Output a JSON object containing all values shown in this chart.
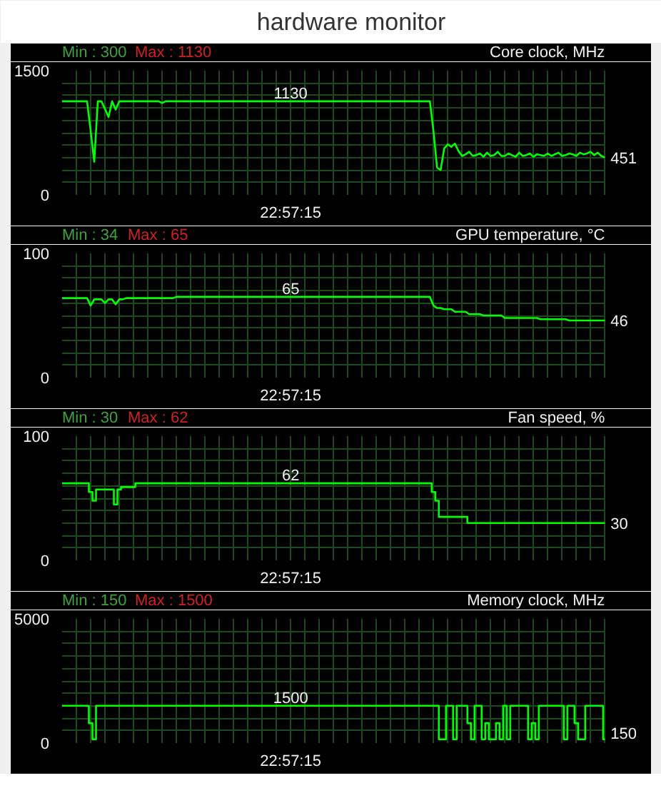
{
  "chart_data": [
    {
      "type": "line",
      "title": "hardware monitor",
      "ylabel": "Core clock, MHz",
      "annotations": [
        "Min : 300",
        "Max : 1130"
      ],
      "color": "#00ff00",
      "grid": true,
      "ylim": [
        0,
        1500
      ],
      "yticks": [
        0,
        {
          "value": 150,
          "label": null
        },
        {
          "value": 300,
          "label": null
        },
        {
          "value": 450,
          "label": null
        },
        {
          "value": 600,
          "label": null
        },
        {
          "value": 750,
          "label": null
        },
        {
          "value": 900,
          "label": null
        },
        {
          "value": 1050,
          "label": null
        },
        {
          "value": 1200,
          "label": null
        },
        {
          "value": 1350,
          "label": null
        },
        1500
      ],
      "categories": [
        null,
        null,
        null,
        null,
        null,
        null,
        null,
        null,
        null,
        null,
        null,
        null,
        null,
        null,
        null,
        null,
        null,
        null,
        null,
        null,
        null,
        null,
        null,
        null,
        null,
        null,
        null,
        null,
        null,
        null,
        null,
        null,
        null,
        null,
        null,
        null,
        null,
        null,
        null,
        null,
        null,
        null,
        null,
        null,
        null,
        null,
        null,
        null,
        null,
        null,
        null,
        null,
        null,
        null,
        null,
        null,
        null,
        null,
        null,
        null,
        null,
        null,
        null,
        null,
        "22:57:15",
        null,
        null,
        null,
        null,
        null,
        null,
        null,
        null,
        null,
        null,
        null,
        null,
        null,
        null,
        null,
        null,
        null,
        null,
        null,
        null,
        null,
        null,
        null,
        null,
        null,
        null,
        null,
        null,
        null,
        null,
        null,
        null,
        null,
        null,
        null,
        null,
        null,
        null,
        null,
        null,
        null,
        null,
        null,
        null,
        null,
        null,
        null,
        null,
        null,
        null,
        null,
        null,
        null,
        null,
        null,
        null,
        null,
        null,
        null,
        null,
        null,
        null,
        null,
        null,
        null,
        null,
        null,
        null,
        null,
        null,
        null,
        null,
        null,
        null,
        null,
        null,
        null,
        null,
        null,
        null,
        null,
        null,
        null,
        null,
        null,
        null,
        null,
        null
      ],
      "values": [
        1130,
        1130,
        1130,
        1130,
        1130,
        1130,
        1130,
        1130,
        770,
        400,
        1130,
        1130,
        1040,
        940,
        1130,
        1030,
        1130,
        1130,
        1130,
        1130,
        1130,
        1130,
        1130,
        1130,
        1130,
        1130,
        1130,
        1130,
        1110,
        1130,
        1130,
        1130,
        1130,
        1130,
        1130,
        1130,
        1130,
        1130,
        1130,
        1130,
        1130,
        1130,
        1130,
        1130,
        1130,
        1130,
        1130,
        1130,
        1130,
        1130,
        1130,
        1130,
        1130,
        1130,
        1130,
        1130,
        1130,
        1130,
        1130,
        1130,
        1130,
        1130,
        1130,
        1130,
        1130,
        1130,
        1130,
        1130,
        1130,
        1130,
        1130,
        1130,
        1130,
        1130,
        1130,
        1130,
        1130,
        1130,
        1130,
        1130,
        1130,
        1130,
        1130,
        1130,
        1130,
        1130,
        1130,
        1130,
        1130,
        1130,
        1130,
        1130,
        1130,
        1130,
        1130,
        1130,
        1130,
        1130,
        1130,
        1130,
        1130,
        1130,
        1130,
        1130,
        770,
        330,
        300,
        560,
        610,
        580,
        620,
        530,
        470,
        490,
        520,
        470,
        480,
        500,
        460,
        510,
        470,
        480,
        520,
        470,
        470,
        500,
        480,
        460,
        510,
        470,
        480,
        500,
        460,
        490,
        480,
        470,
        500,
        470,
        490,
        510,
        470,
        480,
        500,
        490,
        470,
        510,
        490,
        500,
        520,
        480,
        510,
        470,
        451
      ],
      "value_labels": [
        null,
        null,
        null,
        null,
        null,
        null,
        null,
        null,
        null,
        null,
        null,
        null,
        null,
        null,
        null,
        null,
        null,
        null,
        null,
        null,
        null,
        null,
        null,
        null,
        null,
        null,
        null,
        null,
        null,
        null,
        null,
        null,
        null,
        null,
        null,
        null,
        null,
        null,
        null,
        null,
        null,
        null,
        null,
        null,
        null,
        null,
        null,
        null,
        null,
        null,
        null,
        null,
        null,
        null,
        null,
        null,
        null,
        null,
        null,
        null,
        null,
        null,
        null,
        null,
        "1130",
        null,
        null,
        null,
        null,
        null,
        null,
        null,
        null,
        null,
        null,
        null,
        null,
        null,
        null,
        null,
        null,
        null,
        null,
        null,
        null,
        null,
        null,
        null,
        null,
        null,
        null,
        null,
        null,
        null,
        null,
        null,
        null,
        null,
        null,
        null,
        null,
        null,
        null,
        null,
        null,
        null,
        null,
        null,
        null,
        null,
        null,
        null,
        null,
        null,
        null,
        null,
        null,
        null,
        null,
        null,
        null,
        null,
        null,
        null,
        null,
        null,
        null,
        null,
        null,
        null,
        null,
        null,
        null,
        null,
        null,
        null,
        null,
        null,
        null,
        null,
        null,
        null,
        null,
        null,
        null,
        null,
        null,
        null,
        null,
        null,
        null,
        null,
        "451"
      ]
    },
    {
      "type": "line",
      "ylabel": "GPU temperature, °C",
      "annotations": [
        "Min : 34",
        "Max : 65"
      ],
      "color": "#00ff00",
      "grid": true,
      "ylim": [
        0,
        100
      ],
      "yticks": [
        0,
        {
          "value": 10,
          "label": null
        },
        {
          "value": 20,
          "label": null
        },
        {
          "value": 30,
          "label": null
        },
        {
          "value": 40,
          "label": null
        },
        {
          "value": 50,
          "label": null
        },
        {
          "value": 60,
          "label": null
        },
        {
          "value": 70,
          "label": null
        },
        {
          "value": 80,
          "label": null
        },
        {
          "value": 90,
          "label": null
        },
        100
      ],
      "categories": [
        null,
        null,
        null,
        null,
        null,
        null,
        null,
        null,
        null,
        null,
        null,
        null,
        null,
        null,
        null,
        null,
        null,
        null,
        null,
        null,
        null,
        null,
        null,
        null,
        null,
        null,
        null,
        null,
        null,
        null,
        null,
        null,
        null,
        null,
        null,
        null,
        null,
        null,
        null,
        null,
        null,
        null,
        null,
        null,
        null,
        null,
        null,
        null,
        null,
        null,
        null,
        null,
        null,
        null,
        null,
        null,
        null,
        null,
        null,
        null,
        null,
        null,
        null,
        null,
        "22:57:15",
        null,
        null,
        null,
        null,
        null,
        null,
        null,
        null,
        null,
        null,
        null,
        null,
        null,
        null,
        null,
        null,
        null,
        null,
        null,
        null,
        null,
        null,
        null,
        null,
        null,
        null,
        null,
        null,
        null,
        null,
        null,
        null,
        null,
        null,
        null,
        null,
        null,
        null,
        null,
        null,
        null,
        null,
        null,
        null,
        null,
        null,
        null,
        null,
        null,
        null,
        null,
        null,
        null,
        null,
        null,
        null,
        null,
        null,
        null,
        null,
        null,
        null,
        null,
        null,
        null,
        null,
        null,
        null,
        null,
        null,
        null,
        null,
        null,
        null,
        null,
        null,
        null,
        null,
        null,
        null,
        null,
        null,
        null,
        null,
        null,
        null,
        null,
        null
      ],
      "values": [
        64,
        64,
        64,
        64,
        64,
        64,
        64,
        64,
        58,
        63,
        63,
        63,
        60,
        63,
        63,
        59,
        63,
        63,
        64,
        64,
        64,
        64,
        64,
        64,
        64,
        64,
        64,
        64,
        64,
        64,
        64,
        64,
        65,
        65,
        65,
        65,
        65,
        65,
        65,
        65,
        65,
        65,
        65,
        65,
        65,
        65,
        65,
        65,
        65,
        65,
        65,
        65,
        65,
        65,
        65,
        65,
        65,
        65,
        65,
        65,
        65,
        65,
        65,
        65,
        65,
        65,
        65,
        65,
        65,
        65,
        65,
        65,
        65,
        65,
        65,
        65,
        65,
        65,
        65,
        65,
        65,
        65,
        65,
        65,
        65,
        65,
        65,
        65,
        65,
        65,
        65,
        65,
        65,
        65,
        65,
        65,
        65,
        65,
        65,
        65,
        65,
        65,
        65,
        65,
        58,
        56,
        56,
        55,
        55,
        55,
        53,
        53,
        53,
        53,
        51,
        51,
        51,
        51,
        50,
        50,
        50,
        50,
        50,
        50,
        48,
        48,
        48,
        48,
        48,
        48,
        48,
        48,
        48,
        48,
        47,
        47,
        47,
        47,
        47,
        47,
        47,
        47,
        46,
        46,
        46,
        46,
        46,
        46,
        46,
        46,
        46,
        46,
        46
      ],
      "value_labels": [
        null,
        null,
        null,
        null,
        null,
        null,
        null,
        null,
        null,
        null,
        null,
        null,
        null,
        null,
        null,
        null,
        null,
        null,
        null,
        null,
        null,
        null,
        null,
        null,
        null,
        null,
        null,
        null,
        null,
        null,
        null,
        null,
        null,
        null,
        null,
        null,
        null,
        null,
        null,
        null,
        null,
        null,
        null,
        null,
        null,
        null,
        null,
        null,
        null,
        null,
        null,
        null,
        null,
        null,
        null,
        null,
        null,
        null,
        null,
        null,
        null,
        null,
        null,
        null,
        "65",
        null,
        null,
        null,
        null,
        null,
        null,
        null,
        null,
        null,
        null,
        null,
        null,
        null,
        null,
        null,
        null,
        null,
        null,
        null,
        null,
        null,
        null,
        null,
        null,
        null,
        null,
        null,
        null,
        null,
        null,
        null,
        null,
        null,
        null,
        null,
        null,
        null,
        null,
        null,
        null,
        null,
        null,
        null,
        null,
        null,
        null,
        null,
        null,
        null,
        null,
        null,
        null,
        null,
        null,
        null,
        null,
        null,
        null,
        null,
        null,
        null,
        null,
        null,
        null,
        null,
        null,
        null,
        null,
        null,
        null,
        null,
        null,
        null,
        null,
        null,
        null,
        null,
        null,
        null,
        null,
        null,
        null,
        null,
        null,
        null,
        null,
        null,
        "46"
      ]
    },
    {
      "type": "step",
      "ylabel": "Fan speed, %",
      "annotations": [
        "Min : 30",
        "Max : 62"
      ],
      "color": "#00ff00",
      "grid": true,
      "ylim": [
        0,
        100
      ],
      "yticks": [
        0,
        {
          "value": 10,
          "label": null
        },
        {
          "value": 20,
          "label": null
        },
        {
          "value": 30,
          "label": null
        },
        {
          "value": 40,
          "label": null
        },
        {
          "value": 50,
          "label": null
        },
        {
          "value": 60,
          "label": null
        },
        {
          "value": 70,
          "label": null
        },
        {
          "value": 80,
          "label": null
        },
        {
          "value": 90,
          "label": null
        },
        100
      ],
      "categories": [
        null,
        null,
        null,
        null,
        null,
        null,
        null,
        null,
        null,
        null,
        null,
        null,
        null,
        null,
        null,
        null,
        null,
        null,
        null,
        null,
        null,
        null,
        null,
        null,
        null,
        null,
        null,
        null,
        null,
        null,
        null,
        null,
        null,
        null,
        null,
        null,
        null,
        null,
        null,
        null,
        null,
        null,
        null,
        null,
        null,
        null,
        null,
        null,
        null,
        null,
        null,
        null,
        null,
        null,
        null,
        null,
        null,
        null,
        null,
        null,
        null,
        null,
        null,
        null,
        "22:57:15",
        null,
        null,
        null,
        null,
        null,
        null,
        null,
        null,
        null,
        null,
        null,
        null,
        null,
        null,
        null,
        null,
        null,
        null,
        null,
        null,
        null,
        null,
        null,
        null,
        null,
        null,
        null,
        null,
        null,
        null,
        null,
        null,
        null,
        null,
        null,
        null,
        null,
        null,
        null,
        null,
        null,
        null,
        null,
        null,
        null,
        null,
        null,
        null,
        null,
        null,
        null,
        null,
        null,
        null,
        null,
        null,
        null,
        null,
        null,
        null,
        null,
        null,
        null,
        null,
        null,
        null,
        null,
        null,
        null,
        null,
        null,
        null,
        null,
        null,
        null,
        null,
        null,
        null,
        null,
        null,
        null,
        null,
        null,
        null,
        null,
        null,
        null,
        null
      ],
      "values": [
        62,
        62,
        62,
        62,
        62,
        62,
        62,
        62,
        55,
        48,
        57,
        57,
        57,
        57,
        57,
        45,
        57,
        59,
        59,
        59,
        59,
        62,
        62,
        62,
        62,
        62,
        62,
        62,
        62,
        62,
        62,
        62,
        62,
        62,
        62,
        62,
        62,
        62,
        62,
        62,
        62,
        62,
        62,
        62,
        62,
        62,
        62,
        62,
        62,
        62,
        62,
        62,
        62,
        62,
        62,
        62,
        62,
        62,
        62,
        62,
        62,
        62,
        62,
        62,
        62,
        62,
        62,
        62,
        62,
        62,
        62,
        62,
        62,
        62,
        62,
        62,
        62,
        62,
        62,
        62,
        62,
        62,
        62,
        62,
        62,
        62,
        62,
        62,
        62,
        62,
        62,
        62,
        62,
        62,
        62,
        62,
        62,
        62,
        62,
        62,
        62,
        62,
        62,
        62,
        55,
        48,
        35,
        35,
        35,
        35,
        35,
        35,
        35,
        35,
        30,
        30,
        30,
        30,
        30,
        30,
        30,
        30,
        30,
        30,
        30,
        30,
        30,
        30,
        30,
        30,
        30,
        30,
        30,
        30,
        30,
        30,
        30,
        30,
        30,
        30,
        30,
        30,
        30,
        30,
        30,
        30,
        30,
        30,
        30,
        30,
        30,
        30,
        30
      ],
      "value_labels": [
        null,
        null,
        null,
        null,
        null,
        null,
        null,
        null,
        null,
        null,
        null,
        null,
        null,
        null,
        null,
        null,
        null,
        null,
        null,
        null,
        null,
        null,
        null,
        null,
        null,
        null,
        null,
        null,
        null,
        null,
        null,
        null,
        null,
        null,
        null,
        null,
        null,
        null,
        null,
        null,
        null,
        null,
        null,
        null,
        null,
        null,
        null,
        null,
        null,
        null,
        null,
        null,
        null,
        null,
        null,
        null,
        null,
        null,
        null,
        null,
        null,
        null,
        null,
        null,
        "62",
        null,
        null,
        null,
        null,
        null,
        null,
        null,
        null,
        null,
        null,
        null,
        null,
        null,
        null,
        null,
        null,
        null,
        null,
        null,
        null,
        null,
        null,
        null,
        null,
        null,
        null,
        null,
        null,
        null,
        null,
        null,
        null,
        null,
        null,
        null,
        null,
        null,
        null,
        null,
        null,
        null,
        null,
        null,
        null,
        null,
        null,
        null,
        null,
        null,
        null,
        null,
        null,
        null,
        null,
        null,
        null,
        null,
        null,
        null,
        null,
        null,
        null,
        null,
        null,
        null,
        null,
        null,
        null,
        null,
        null,
        null,
        null,
        null,
        null,
        null,
        null,
        null,
        null,
        null,
        null,
        null,
        null,
        null,
        null,
        null,
        null,
        null,
        "30"
      ]
    },
    {
      "type": "step",
      "ylabel": "Memory clock, MHz",
      "annotations": [
        "Min : 150",
        "Max : 1500"
      ],
      "color": "#00ff00",
      "grid": true,
      "ylim": [
        0,
        5000
      ],
      "yticks": [
        0,
        {
          "value": 500,
          "label": null
        },
        {
          "value": 1000,
          "label": null
        },
        {
          "value": 1500,
          "label": null
        },
        {
          "value": 2000,
          "label": null
        },
        {
          "value": 2500,
          "label": null
        },
        {
          "value": 3000,
          "label": null
        },
        {
          "value": 3500,
          "label": null
        },
        {
          "value": 4000,
          "label": null
        },
        {
          "value": 4500,
          "label": null
        },
        5000
      ],
      "categories": [
        null,
        null,
        null,
        null,
        null,
        null,
        null,
        null,
        null,
        null,
        null,
        null,
        null,
        null,
        null,
        null,
        null,
        null,
        null,
        null,
        null,
        null,
        null,
        null,
        null,
        null,
        null,
        null,
        null,
        null,
        null,
        null,
        null,
        null,
        null,
        null,
        null,
        null,
        null,
        null,
        null,
        null,
        null,
        null,
        null,
        null,
        null,
        null,
        null,
        null,
        null,
        null,
        null,
        null,
        null,
        null,
        null,
        null,
        null,
        null,
        null,
        null,
        null,
        null,
        "22:57:15",
        null,
        null,
        null,
        null,
        null,
        null,
        null,
        null,
        null,
        null,
        null,
        null,
        null,
        null,
        null,
        null,
        null,
        null,
        null,
        null,
        null,
        null,
        null,
        null,
        null,
        null,
        null,
        null,
        null,
        null,
        null,
        null,
        null,
        null,
        null,
        null,
        null,
        null,
        null,
        null,
        null,
        null,
        null,
        null,
        null,
        null,
        null,
        null,
        null,
        null,
        null,
        null,
        null,
        null,
        null,
        null,
        null,
        null,
        null,
        null,
        null,
        null,
        null,
        null,
        null,
        null,
        null,
        null,
        null,
        null,
        null,
        null,
        null,
        null,
        null,
        null,
        null,
        null,
        null,
        null,
        null,
        null,
        null,
        null,
        null,
        null,
        null,
        null
      ],
      "values": [
        1500,
        1500,
        1500,
        1500,
        1500,
        1500,
        1500,
        1500,
        800,
        150,
        1500,
        1500,
        1500,
        1500,
        1500,
        1500,
        1500,
        1500,
        1500,
        1500,
        1500,
        1500,
        1500,
        1500,
        1500,
        1500,
        1500,
        1500,
        1500,
        1500,
        1500,
        1500,
        1500,
        1500,
        1500,
        1500,
        1500,
        1500,
        1500,
        1500,
        1500,
        1500,
        1500,
        1500,
        1500,
        1500,
        1500,
        1500,
        1500,
        1500,
        1500,
        1500,
        1500,
        1500,
        1500,
        1500,
        1500,
        1500,
        1500,
        1500,
        1500,
        1500,
        1500,
        1500,
        1500,
        1500,
        1500,
        1500,
        1500,
        1500,
        1500,
        1500,
        1500,
        1500,
        1500,
        1500,
        1500,
        1500,
        1500,
        1500,
        1500,
        1500,
        1500,
        1500,
        1500,
        1500,
        1500,
        1500,
        1500,
        1500,
        1500,
        1500,
        1500,
        1500,
        1500,
        1500,
        1500,
        1500,
        1500,
        1500,
        1500,
        1500,
        1500,
        1500,
        1500,
        1500,
        150,
        150,
        1500,
        1500,
        150,
        1500,
        1500,
        1500,
        800,
        150,
        1500,
        1500,
        150,
        800,
        150,
        150,
        800,
        150,
        1500,
        150,
        1500,
        1500,
        1500,
        1500,
        1500,
        150,
        800,
        150,
        1500,
        1500,
        1500,
        1500,
        1500,
        1500,
        1500,
        150,
        1500,
        1500,
        800,
        150,
        150,
        1500,
        1500,
        1500,
        1500,
        1500,
        150
      ],
      "value_labels": [
        null,
        null,
        null,
        null,
        null,
        null,
        null,
        null,
        null,
        null,
        null,
        null,
        null,
        null,
        null,
        null,
        null,
        null,
        null,
        null,
        null,
        null,
        null,
        null,
        null,
        null,
        null,
        null,
        null,
        null,
        null,
        null,
        null,
        null,
        null,
        null,
        null,
        null,
        null,
        null,
        null,
        null,
        null,
        null,
        null,
        null,
        null,
        null,
        null,
        null,
        null,
        null,
        null,
        null,
        null,
        null,
        null,
        null,
        null,
        null,
        null,
        null,
        null,
        null,
        "1500",
        null,
        null,
        null,
        null,
        null,
        null,
        null,
        null,
        null,
        null,
        null,
        null,
        null,
        null,
        null,
        null,
        null,
        null,
        null,
        null,
        null,
        null,
        null,
        null,
        null,
        null,
        null,
        null,
        null,
        null,
        null,
        null,
        null,
        null,
        null,
        null,
        null,
        null,
        null,
        null,
        null,
        null,
        null,
        null,
        null,
        null,
        null,
        null,
        null,
        null,
        null,
        null,
        null,
        null,
        null,
        null,
        null,
        null,
        null,
        null,
        null,
        null,
        null,
        null,
        null,
        null,
        null,
        null,
        null,
        null,
        null,
        null,
        null,
        null,
        null,
        null,
        null,
        null,
        null,
        null,
        null,
        null,
        null,
        null,
        null,
        null,
        null,
        "150"
      ]
    }
  ]
}
